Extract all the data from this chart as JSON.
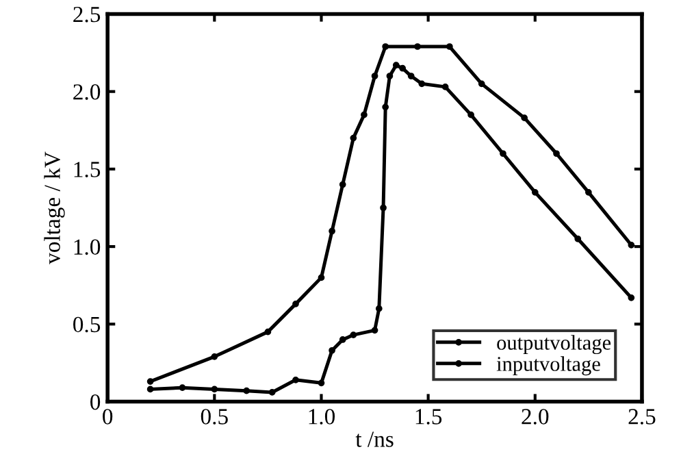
{
  "chart_data": {
    "type": "line",
    "xlabel": "t /ns",
    "ylabel": "voltage / kV",
    "series": [
      {
        "name": "outputvoltage",
        "color": "#000000",
        "x": [
          0.2,
          0.35,
          0.5,
          0.65,
          0.77,
          0.88,
          1.0,
          1.05,
          1.1,
          1.15,
          1.25,
          1.27,
          1.29,
          1.3,
          1.32,
          1.35,
          1.38,
          1.42,
          1.47,
          1.58,
          1.7,
          1.85,
          2.0,
          2.2,
          2.45
        ],
        "values": [
          0.08,
          0.09,
          0.08,
          0.07,
          0.06,
          0.14,
          0.12,
          0.33,
          0.4,
          0.43,
          0.46,
          0.6,
          1.25,
          1.9,
          2.1,
          2.17,
          2.15,
          2.1,
          2.05,
          2.03,
          1.85,
          1.6,
          1.35,
          1.05,
          0.67
        ]
      },
      {
        "name": "inputvoltage",
        "color": "#000000",
        "x": [
          0.2,
          0.5,
          0.75,
          0.88,
          1.0,
          1.05,
          1.1,
          1.15,
          1.2,
          1.25,
          1.3,
          1.45,
          1.6,
          1.75,
          1.95,
          2.1,
          2.25,
          2.45
        ],
        "values": [
          0.13,
          0.29,
          0.45,
          0.63,
          0.8,
          1.1,
          1.4,
          1.7,
          1.85,
          2.1,
          2.29,
          2.29,
          2.29,
          2.05,
          1.83,
          1.6,
          1.35,
          1.01
        ]
      }
    ],
    "xlim": [
      0,
      2.5
    ],
    "ylim": [
      0,
      2.5
    ],
    "xticks": [
      0,
      0.5,
      {
        "value": 1,
        "label": "1.0"
      },
      1.5,
      {
        "value": 2,
        "label": "2.0"
      },
      2.5
    ],
    "yticks": [
      0,
      0.5,
      {
        "value": 1,
        "label": "1.0"
      },
      1.5,
      {
        "value": 2,
        "label": "2.0"
      },
      2.5
    ],
    "marker": "circle",
    "line_style": "solid",
    "grid": false,
    "legend": "bottom right"
  }
}
